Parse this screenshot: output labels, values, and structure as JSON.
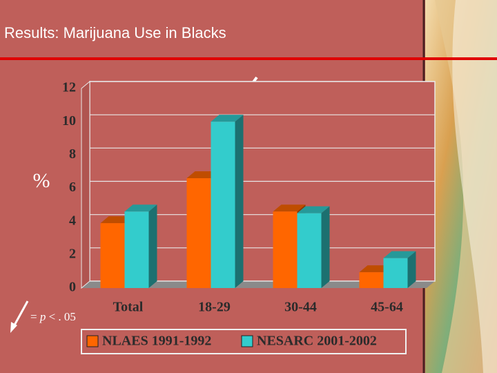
{
  "chart_data": {
    "type": "bar3d",
    "title": "Results:  Marijuana Use in Blacks",
    "y_label": "%",
    "annotation": [
      "= ",
      "p",
      " < . 05"
    ],
    "categories": [
      "Total",
      "18-29",
      "30-44",
      "45-64"
    ],
    "series": [
      {
        "name": "NLAES 1991-1992",
        "color": "#ff6600",
        "values": [
          3.9,
          6.6,
          4.6,
          0.95
        ]
      },
      {
        "name": "NESARC 2001-2002",
        "color": "#33cccc",
        "values": [
          4.6,
          10,
          4.5,
          1.8
        ]
      }
    ],
    "ylim": [
      0,
      12
    ],
    "yticks": [
      0,
      2,
      4,
      6,
      8,
      10,
      12
    ],
    "grid": true
  }
}
